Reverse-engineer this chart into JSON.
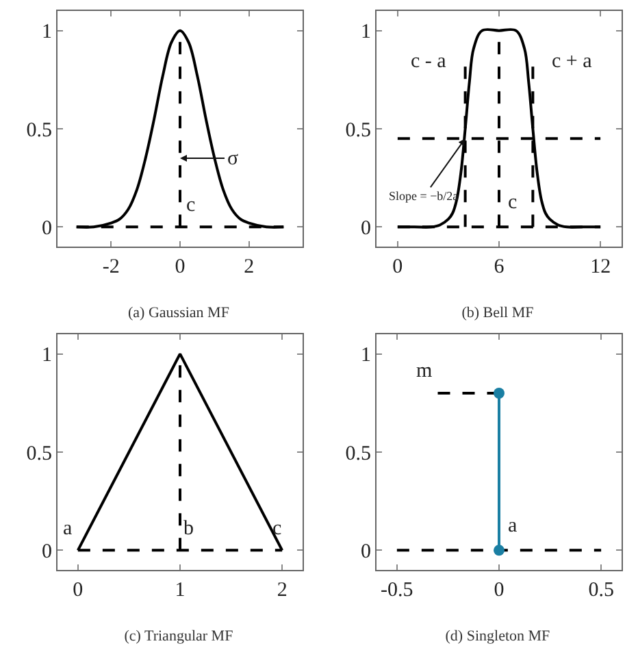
{
  "chart_data": [
    {
      "type": "line",
      "title": "(a) Gaussian MF",
      "xlim": [
        -3.55,
        3.55
      ],
      "xticks": [
        -2,
        0,
        2
      ],
      "ylim": [
        -0.1,
        1.1
      ],
      "yticks": [
        0,
        0.5,
        1
      ],
      "series": [
        {
          "color": "#000000",
          "x": [
            -3,
            -2.5,
            -2,
            -1.75,
            -1.5,
            -1.25,
            -1,
            -0.75,
            -0.5,
            -0.25,
            0,
            0.25,
            0.5,
            0.75,
            1,
            1.25,
            1.5,
            1.75,
            2,
            2.5,
            3
          ],
          "values": [
            0,
            0,
            0.02,
            0.04,
            0.09,
            0.19,
            0.35,
            0.55,
            0.77,
            0.94,
            1,
            0.94,
            0.77,
            0.55,
            0.35,
            0.19,
            0.09,
            0.04,
            0.02,
            0,
            0
          ]
        },
        {
          "color": "#000000",
          "line_style": "dashed",
          "x": [
            0,
            0
          ],
          "values": [
            0,
            1
          ]
        },
        {
          "color": "#000000",
          "line_style": "dashed",
          "x": [
            -3,
            3
          ],
          "values": [
            0,
            0
          ]
        }
      ],
      "annotations": [
        {
          "text": "σ",
          "x": 0,
          "y": 0.35
        },
        {
          "text": "c",
          "x": 0,
          "y": 0
        }
      ]
    },
    {
      "type": "line",
      "title": "(b) Bell MF",
      "xlim": [
        -1.25,
        13.25
      ],
      "xticks": [
        0,
        6,
        12
      ],
      "ylim": [
        -0.1,
        1.1
      ],
      "yticks": [
        0,
        0.5,
        1
      ],
      "series": [
        {
          "color": "#000000",
          "x": [
            0,
            1,
            2,
            2.5,
            3,
            3.25,
            3.5,
            3.75,
            4,
            4.25,
            4.5,
            5,
            6,
            7,
            7.5,
            7.75,
            8,
            8.25,
            8.5,
            8.75,
            9,
            9.5,
            10,
            11,
            12
          ],
          "values": [
            0,
            0,
            0,
            0.01,
            0.04,
            0.07,
            0.14,
            0.28,
            0.5,
            0.74,
            0.91,
            1,
            1,
            1,
            0.91,
            0.74,
            0.5,
            0.28,
            0.14,
            0.07,
            0.04,
            0.01,
            0,
            0,
            0
          ]
        },
        {
          "color": "#000000",
          "line_style": "dashed",
          "x": [
            0,
            12
          ],
          "values": [
            0.45,
            0.45
          ]
        },
        {
          "color": "#000000",
          "line_style": "dashed",
          "x": [
            0,
            12
          ],
          "values": [
            0,
            0
          ]
        },
        {
          "color": "#000000",
          "line_style": "dashed",
          "x": [
            4,
            4
          ],
          "values": [
            0,
            0.83
          ]
        },
        {
          "color": "#000000",
          "line_style": "dashed",
          "x": [
            6,
            6
          ],
          "values": [
            0,
            1
          ]
        },
        {
          "color": "#000000",
          "line_style": "dashed",
          "x": [
            8,
            8
          ],
          "values": [
            0,
            0.83
          ]
        }
      ],
      "annotations": [
        {
          "text": "c - a",
          "x": 4,
          "y": 0.83
        },
        {
          "text": "c + a",
          "x": 8,
          "y": 0.83
        },
        {
          "text": "c",
          "x": 6,
          "y": 0
        },
        {
          "text": "Slope = −b/2a",
          "x": 4,
          "y": 0.45
        }
      ]
    },
    {
      "type": "line",
      "title": "(c) Triangular MF",
      "xlim": [
        -0.2,
        2.2
      ],
      "xticks": [
        0,
        1,
        2
      ],
      "ylim": [
        -0.1,
        1.1
      ],
      "yticks": [
        0,
        0.5,
        1
      ],
      "series": [
        {
          "color": "#000000",
          "x": [
            0,
            1,
            2
          ],
          "values": [
            0,
            1,
            0
          ]
        },
        {
          "color": "#000000",
          "line_style": "dashed",
          "x": [
            1,
            1
          ],
          "values": [
            0,
            1
          ]
        },
        {
          "color": "#000000",
          "line_style": "dashed",
          "x": [
            0,
            2
          ],
          "values": [
            0,
            0
          ]
        }
      ],
      "annotations": [
        {
          "text": "a",
          "x": 0,
          "y": 0
        },
        {
          "text": "b",
          "x": 1,
          "y": 0
        },
        {
          "text": "c",
          "x": 2,
          "y": 0
        }
      ]
    },
    {
      "type": "line",
      "title": "(d) Singleton MF",
      "xlim": [
        -0.6,
        0.6
      ],
      "xticks": [
        -0.5,
        0,
        0.5
      ],
      "ylim": [
        -0.1,
        1.1
      ],
      "yticks": [
        0,
        0.5,
        1
      ],
      "series": [
        {
          "color": "#000000",
          "line_style": "dashed",
          "x": [
            -0.5,
            0.5
          ],
          "values": [
            0,
            0
          ]
        },
        {
          "color": "#000000",
          "line_style": "dashed",
          "x": [
            -0.3,
            0
          ],
          "values": [
            0.8,
            0.8
          ]
        },
        {
          "color": "#1a7fa3",
          "marker": "circle",
          "x": [
            0,
            0
          ],
          "values": [
            0,
            0.8
          ]
        }
      ],
      "annotations": [
        {
          "text": "m",
          "x": -0.3,
          "y": 0.8
        },
        {
          "text": "a",
          "x": 0,
          "y": 0
        }
      ]
    }
  ]
}
